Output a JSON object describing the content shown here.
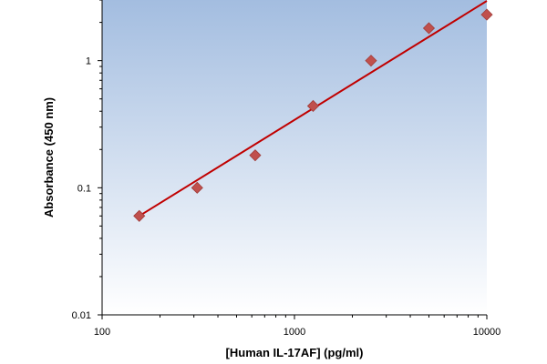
{
  "chart_data": {
    "type": "scatter",
    "xlabel": "[Human IL-17AF] (pg/ml)",
    "ylabel": "Absorbance (450 nm)",
    "xscale": "log",
    "yscale": "log",
    "xlim": [
      100,
      10000
    ],
    "ylim": [
      0.01,
      3
    ],
    "x_ticks": [
      {
        "value": 100,
        "label": "100"
      },
      {
        "value": 1000,
        "label": "1000"
      },
      {
        "value": 10000,
        "label": "10000"
      }
    ],
    "y_ticks": [
      {
        "value": 0.01,
        "label": "0.01"
      },
      {
        "value": 0.1,
        "label": "0.1"
      },
      {
        "value": 1,
        "label": "1"
      }
    ],
    "grid": false,
    "points": [
      {
        "x": 156,
        "y": 0.06
      },
      {
        "x": 312,
        "y": 0.1
      },
      {
        "x": 625,
        "y": 0.18
      },
      {
        "x": 1250,
        "y": 0.44
      },
      {
        "x": 2500,
        "y": 1.0
      },
      {
        "x": 5000,
        "y": 1.8
      },
      {
        "x": 10000,
        "y": 2.3
      }
    ],
    "fit_line": {
      "x": [
        156,
        10000
      ],
      "y": [
        0.06,
        2.95
      ]
    },
    "colors": {
      "marker": "#c0504d",
      "fit_line": "#c00000",
      "plot_bg_top": "#a3bde0",
      "plot_bg_bottom": "#ffffff"
    }
  }
}
